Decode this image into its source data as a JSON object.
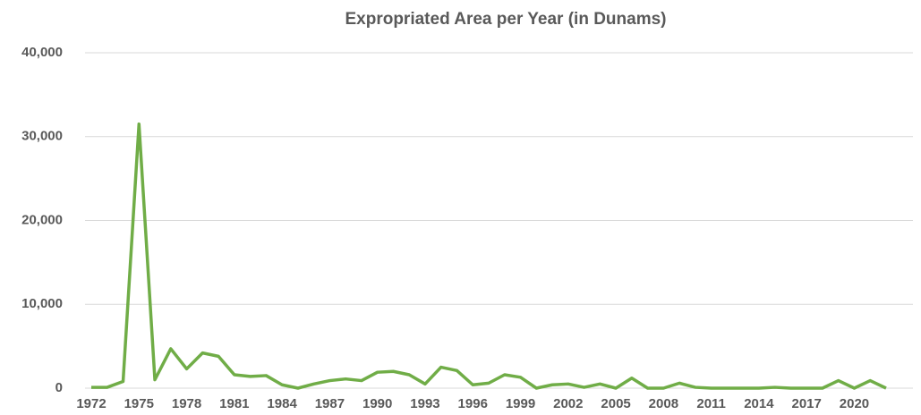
{
  "chart_data": {
    "type": "line",
    "title": "Expropriated Area per Year (in Dunams)",
    "categories": [
      "1972",
      null,
      null,
      "1975",
      null,
      null,
      "1978",
      null,
      null,
      "1981",
      null,
      null,
      "1984",
      null,
      null,
      "1987",
      null,
      null,
      "1990",
      null,
      null,
      "1993",
      null,
      null,
      "1996",
      null,
      null,
      "1999",
      null,
      null,
      "2002",
      null,
      null,
      "2005",
      null,
      null,
      "2008",
      null,
      null,
      "2011",
      null,
      null,
      "2014",
      null,
      null,
      "2017",
      null,
      null,
      "2020",
      null,
      null
    ],
    "series": [
      {
        "name": "Expropriated Area",
        "color": "#70ad47",
        "values": [
          100,
          100,
          800,
          31500,
          1000,
          4700,
          2300,
          4200,
          3800,
          1600,
          1400,
          1500,
          400,
          0,
          500,
          900,
          1100,
          900,
          1900,
          2000,
          1600,
          500,
          2500,
          2100,
          400,
          600,
          1600,
          1300,
          0,
          400,
          500,
          100,
          500,
          0,
          1200,
          0,
          0,
          600,
          100,
          0,
          0,
          0,
          0,
          100,
          0,
          0,
          0,
          900,
          0,
          900,
          0
        ]
      }
    ],
    "ylim": [
      0,
      40000
    ],
    "yticks": [
      0,
      {
        "value": 10000,
        "label": "10,000"
      },
      {
        "value": 20000,
        "label": "20,000"
      },
      {
        "value": 30000,
        "label": "30,000"
      },
      {
        "value": 40000,
        "label": "40,000"
      }
    ],
    "grid": true
  }
}
